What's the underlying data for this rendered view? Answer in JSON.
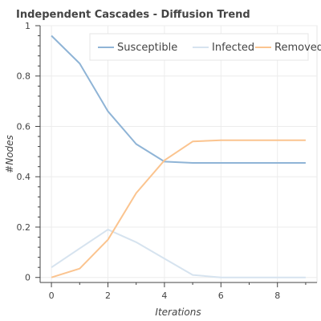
{
  "chart_data": {
    "type": "line",
    "title": "Independent Cascades - Diffusion Trend",
    "xlabel": "Iterations",
    "ylabel": "#Nodes",
    "x": [
      0,
      1,
      2,
      3,
      4,
      5,
      6,
      7,
      8,
      9
    ],
    "xlim": [
      -0.4,
      9.4
    ],
    "ylim": [
      -0.02,
      1.0
    ],
    "xticks": [
      0,
      2,
      4,
      6,
      8
    ],
    "xtick_labels": [
      "0",
      "2",
      "4",
      "6",
      "8"
    ],
    "yticks": [
      0,
      0.2,
      0.4,
      0.6,
      0.8,
      1
    ],
    "ytick_labels": [
      "0",
      "0.2",
      "0.4",
      "0.6",
      "0.8",
      "1"
    ],
    "grid": true,
    "legend_position": "top-right",
    "series": [
      {
        "name": "Susceptible",
        "color": "#8fb4d6",
        "values": [
          0.96,
          0.85,
          0.66,
          0.53,
          0.46,
          0.455,
          0.455,
          0.455,
          0.455,
          0.455
        ]
      },
      {
        "name": "Infected",
        "color": "#d6e3ef",
        "values": [
          0.04,
          0.115,
          0.19,
          0.14,
          0.075,
          0.01,
          0.0,
          0.0,
          0.0,
          0.0
        ]
      },
      {
        "name": "Removed",
        "color": "#fbc48f",
        "values": [
          0.0,
          0.035,
          0.15,
          0.335,
          0.465,
          0.54,
          0.545,
          0.545,
          0.545,
          0.545
        ]
      }
    ]
  }
}
